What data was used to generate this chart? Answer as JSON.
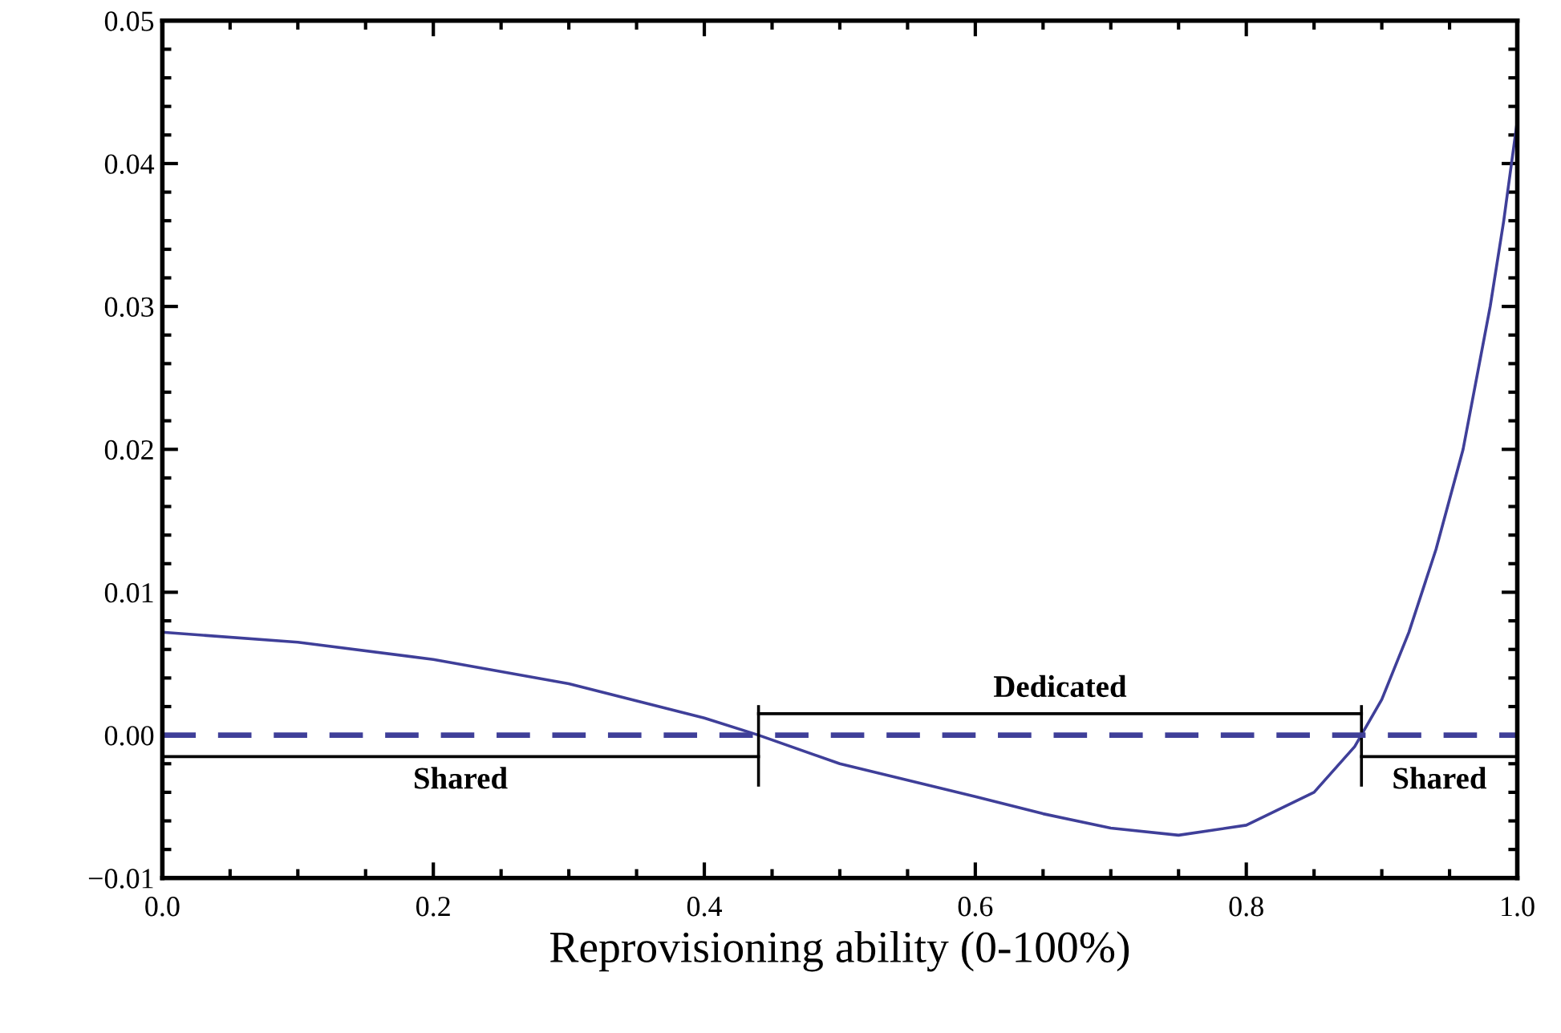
{
  "chart_data": {
    "type": "line",
    "xlabel": "Reprovisioning ability (0-100%)",
    "x": [
      0,
      0.1,
      0.2,
      0.3,
      0.4,
      0.44,
      0.5,
      0.6,
      0.65,
      0.7,
      0.75,
      0.8,
      0.85,
      0.88,
      0.9,
      0.92,
      0.94,
      0.96,
      0.98,
      0.99,
      1.0
    ],
    "series": [
      {
        "color": "#3f3f99",
        "values": [
          0.0072,
          0.0065,
          0.0053,
          0.0036,
          0.0012,
          0.0,
          -0.002,
          -0.0043,
          -0.0055,
          -0.0065,
          -0.007,
          -0.0063,
          -0.004,
          -0.0008,
          0.0025,
          0.0072,
          0.013,
          0.02,
          0.03,
          0.036,
          0.043
        ]
      },
      {
        "color": "#000000",
        "x": [
          0,
          0.44
        ],
        "values": [
          -0.0015,
          -0.0015
        ]
      },
      {
        "color": "#000000",
        "x": [
          0.44,
          0.44
        ],
        "values": [
          -0.0035,
          0.002
        ]
      },
      {
        "color": "#000000",
        "x": [
          0.44,
          0.885
        ],
        "values": [
          0.0015,
          0.0015
        ]
      },
      {
        "color": "#000000",
        "x": [
          0.885,
          0.885
        ],
        "values": [
          -0.0035,
          0.002
        ]
      },
      {
        "color": "#000000",
        "x": [
          0.885,
          1.0
        ],
        "values": [
          -0.0015,
          -0.0015
        ]
      }
    ],
    "ref_lines": [
      {
        "axis": "y",
        "value": 0,
        "color": "#3f3f99",
        "line_style": "dashed"
      }
    ],
    "annotations": [
      "Shared",
      "Dedicated",
      "Shared"
    ],
    "xlim": [
      0,
      1
    ],
    "xticks": [
      {
        "value": 0,
        "label": "0.0"
      },
      0.2,
      0.4,
      0.6,
      0.8,
      {
        "value": 1,
        "label": "1.0"
      }
    ],
    "ylim": [
      -0.01,
      0.05
    ],
    "yticks": [
      {
        "value": -0.01,
        "label": "−0.01"
      },
      {
        "value": 0,
        "label": "0.00"
      },
      {
        "value": 0.01,
        "label": "0.01"
      },
      {
        "value": 0.02,
        "label": "0.02"
      },
      {
        "value": 0.03,
        "label": "0.03"
      },
      {
        "value": 0.04,
        "label": "0.04"
      },
      {
        "value": 0.05,
        "label": "0.05"
      }
    ],
    "grid": false,
    "legend": false,
    "marker": "none",
    "line_style": "solid"
  }
}
